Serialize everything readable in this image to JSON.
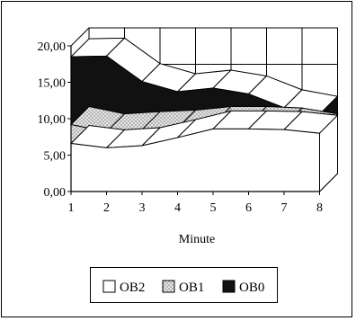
{
  "chart_data": {
    "type": "area",
    "stacked": true,
    "three_d": true,
    "x": [
      1,
      2,
      3,
      4,
      5,
      6,
      7,
      8
    ],
    "xlabel": "Minute",
    "ylabel": "",
    "ylim": [
      0,
      20
    ],
    "y_ticks": [
      "0,00",
      "5,00",
      "10,00",
      "15,00",
      "20,00"
    ],
    "x_ticks": [
      "1",
      "2",
      "3",
      "4",
      "5",
      "6",
      "7",
      "8"
    ],
    "grid": true,
    "legend_position": "bottom",
    "series": [
      {
        "name": "OB2",
        "values": [
          6.6,
          6.0,
          6.3,
          7.4,
          8.6,
          8.6,
          8.5,
          8.0
        ],
        "color": "#ffffff",
        "pattern": "none"
      },
      {
        "name": "OB1",
        "values": [
          2.6,
          2.2,
          2.2,
          1.3,
          0.6,
          0.6,
          0.5,
          0.2
        ],
        "color": "#d8d8d8",
        "pattern": "dotted"
      },
      {
        "name": "OB0",
        "values": [
          9.3,
          10.4,
          6.6,
          5.0,
          5.0,
          4.2,
          2.5,
          2.4
        ],
        "color": "#111111",
        "pattern": "solid"
      }
    ]
  }
}
